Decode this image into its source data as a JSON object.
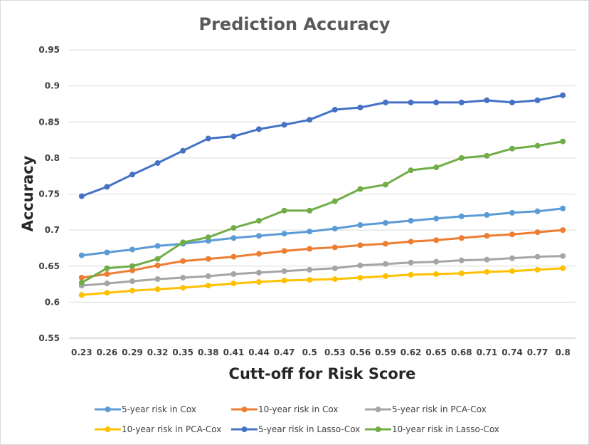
{
  "chart_data": {
    "type": "line",
    "title": "Prediction Accuracy",
    "xlabel": "Cutt-off for Risk Score",
    "ylabel": "Accuracy",
    "ylim": [
      0.55,
      0.95
    ],
    "yticks": [
      "0.55",
      "0.6",
      "0.65",
      "0.7",
      "0.75",
      "0.8",
      "0.85",
      "0.9",
      "0.95"
    ],
    "categories": [
      "0.23",
      "0.26",
      "0.29",
      "0.32",
      "0.35",
      "0.38",
      "0.41",
      "0.44",
      "0.47",
      "0.5",
      "0.53",
      "0.56",
      "0.59",
      "0.62",
      "0.65",
      "0.68",
      "0.71",
      "0.74",
      "0.77",
      "0.8"
    ],
    "grid": true,
    "legend_position": "bottom",
    "series": [
      {
        "name": "5-year risk in Cox",
        "color": "#5b9bd5",
        "values": [
          0.665,
          0.669,
          0.673,
          0.678,
          0.681,
          0.685,
          0.689,
          0.692,
          0.695,
          0.698,
          0.702,
          0.707,
          0.71,
          0.713,
          0.716,
          0.719,
          0.721,
          0.724,
          0.726,
          0.73
        ]
      },
      {
        "name": "10-year risk in Cox",
        "color": "#ed7d31",
        "values": [
          0.634,
          0.639,
          0.644,
          0.651,
          0.657,
          0.66,
          0.663,
          0.667,
          0.671,
          0.674,
          0.676,
          0.679,
          0.681,
          0.684,
          0.686,
          0.689,
          0.692,
          0.694,
          0.697,
          0.7
        ]
      },
      {
        "name": "5-year risk in PCA-Cox",
        "color": "#a5a5a5",
        "values": [
          0.623,
          0.626,
          0.629,
          0.632,
          0.634,
          0.636,
          0.639,
          0.641,
          0.643,
          0.645,
          0.647,
          0.651,
          0.653,
          0.655,
          0.656,
          0.658,
          0.659,
          0.661,
          0.663,
          0.664
        ]
      },
      {
        "name": "10-year risk in PCA-Cox",
        "color": "#ffc000",
        "values": [
          0.61,
          0.613,
          0.616,
          0.618,
          0.62,
          0.623,
          0.626,
          0.628,
          0.63,
          0.631,
          0.632,
          0.634,
          0.636,
          0.638,
          0.639,
          0.64,
          0.642,
          0.643,
          0.645,
          0.647
        ]
      },
      {
        "name": "5-year risk in Lasso-Cox",
        "color": "#4472c4",
        "values": [
          0.747,
          0.76,
          0.777,
          0.793,
          0.81,
          0.827,
          0.83,
          0.84,
          0.846,
          0.853,
          0.867,
          0.87,
          0.877,
          0.877,
          0.877,
          0.877,
          0.88,
          0.877,
          0.88,
          0.887
        ]
      },
      {
        "name": "10-year risk in Lasso-Cox",
        "color": "#70ad47",
        "values": [
          0.627,
          0.647,
          0.65,
          0.66,
          0.683,
          0.69,
          0.703,
          0.713,
          0.727,
          0.727,
          0.74,
          0.757,
          0.763,
          0.783,
          0.787,
          0.8,
          0.803,
          0.813,
          0.817,
          0.823
        ]
      }
    ]
  }
}
